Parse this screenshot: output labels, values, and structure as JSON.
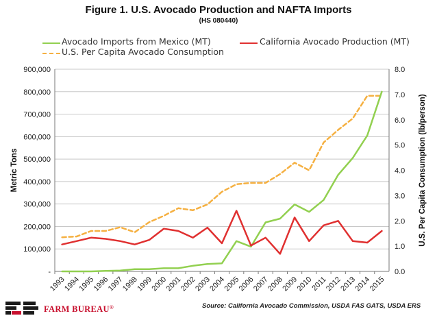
{
  "chart_data": {
    "type": "line",
    "title": "Figure 1. U.S. Avocado Production and NAFTA Imports",
    "subtitle": "(HS 080440)",
    "ylabel_left": "Metric Tons",
    "ylabel_right": "U.S. Per Capita Consumption  (lb/person)",
    "ylim_left": [
      0,
      900000
    ],
    "ylim_right": [
      0,
      8.0
    ],
    "yticks_left": [
      "-",
      "100,000",
      "200,000",
      "300,000",
      "400,000",
      "500,000",
      "600,000",
      "700,000",
      "800,000",
      "900,000"
    ],
    "yticks_right": [
      "0.0",
      "1.0",
      "2.0",
      "3.0",
      "4.0",
      "5.0",
      "6.0",
      "7.0",
      "8.0"
    ],
    "grid": true,
    "legend_placement": "top",
    "x": [
      "1993",
      "1994",
      "1995",
      "1996",
      "1997",
      "1998",
      "1999",
      "2000",
      "2001",
      "2002",
      "2003",
      "2004",
      "2005",
      "2006",
      "2007",
      "2008",
      "2009",
      "2010",
      "2011",
      "2012",
      "2013",
      "2014",
      "2015"
    ],
    "series": [
      {
        "name": "Avocado Imports from Mexico (MT)",
        "axis": "left",
        "style": "solid",
        "color": "#92d050",
        "values": [
          0,
          0,
          0,
          2000,
          4000,
          10000,
          10000,
          14000,
          14000,
          25000,
          33000,
          36000,
          135000,
          110000,
          218000,
          235000,
          298000,
          265000,
          318000,
          430000,
          505000,
          605000,
          800000
        ]
      },
      {
        "name": "California Avocado Production (MT)",
        "axis": "left",
        "style": "solid",
        "color": "#e03030",
        "values": [
          120000,
          135000,
          150000,
          145000,
          135000,
          120000,
          140000,
          190000,
          180000,
          150000,
          195000,
          125000,
          270000,
          115000,
          150000,
          78000,
          240000,
          135000,
          205000,
          225000,
          135000,
          128000,
          180000
        ]
      },
      {
        "name": "U.S. Per Capita Avocado Consumption",
        "axis": "right",
        "style": "dashed",
        "color": "#f5b041",
        "values": [
          1.35,
          1.38,
          1.6,
          1.6,
          1.75,
          1.55,
          1.95,
          2.2,
          2.5,
          2.42,
          2.65,
          3.15,
          3.45,
          3.5,
          3.5,
          3.85,
          4.3,
          4.0,
          5.1,
          5.6,
          6.05,
          6.95,
          6.95
        ]
      }
    ]
  },
  "source": "Source: California Avocado Commission,  USDA FAS GATS, USDA ERS",
  "logo": {
    "text": "FARM BUREAU",
    "mark": "®",
    "color": "#c8102e"
  }
}
